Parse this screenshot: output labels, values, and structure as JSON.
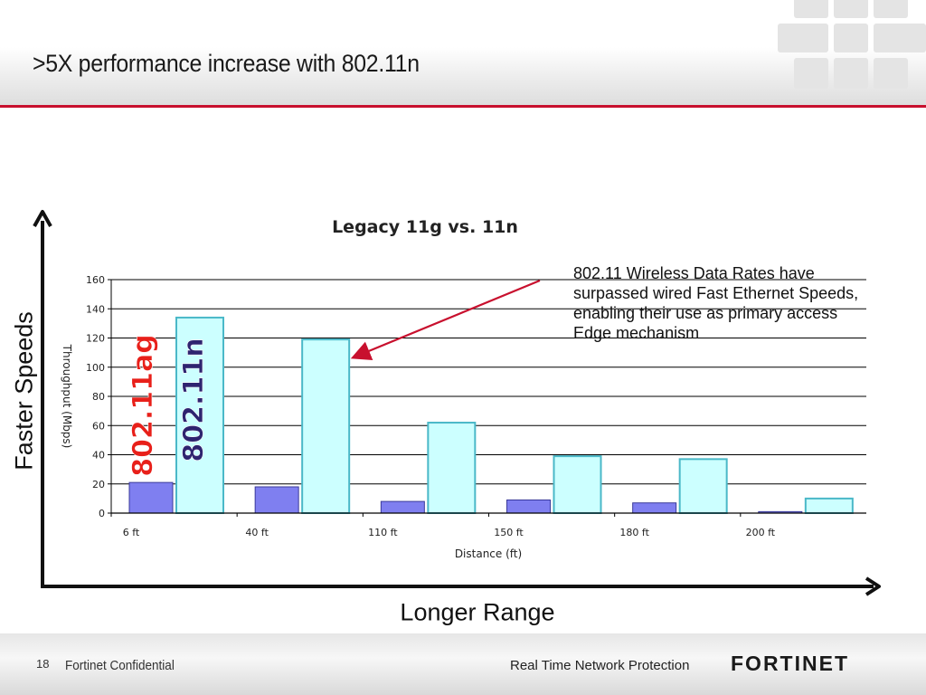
{
  "slide": {
    "title": ">5X performance increase with 802.11n"
  },
  "annotation": {
    "text": "802.11 Wireless Data Rates have surpassed  wired Fast Ethernet Speeds, enabling their use as primary access Edge mechanism"
  },
  "axis_arrows": {
    "y_label": "Faster Speeds",
    "x_label": "Longer Range"
  },
  "footer": {
    "page_number": "18",
    "confidential": "Fortinet Confidential",
    "tagline": "Real Time Network Protection",
    "logo_text": "FORTINET"
  },
  "colors": {
    "accent_red": "#c8102e",
    "series_11g": "#7f7ff0",
    "series_11n": "#ccffff",
    "label_11ag": "#e8201a",
    "label_11n": "#2e2470"
  },
  "chart_data": {
    "type": "bar",
    "title": "Legacy 11g vs. 11n",
    "xlabel": "Distance (ft)",
    "ylabel": "Throughput (Mbps)",
    "categories": [
      "6 ft",
      "40 ft",
      "110 ft",
      "150 ft",
      "180 ft",
      "200 ft"
    ],
    "series": [
      {
        "name": "802.11ag",
        "color": "#7f7ff0",
        "values": [
          21,
          18,
          8,
          9,
          7,
          1
        ]
      },
      {
        "name": "802.11n",
        "color": "#ccffff",
        "values": [
          134,
          119,
          62,
          39,
          37,
          10
        ]
      }
    ],
    "ylim": [
      0,
      160
    ],
    "yticks": [
      0,
      20,
      40,
      60,
      80,
      100,
      120,
      140,
      160
    ],
    "grid": true,
    "legend": "rotated labels over first category bars"
  }
}
